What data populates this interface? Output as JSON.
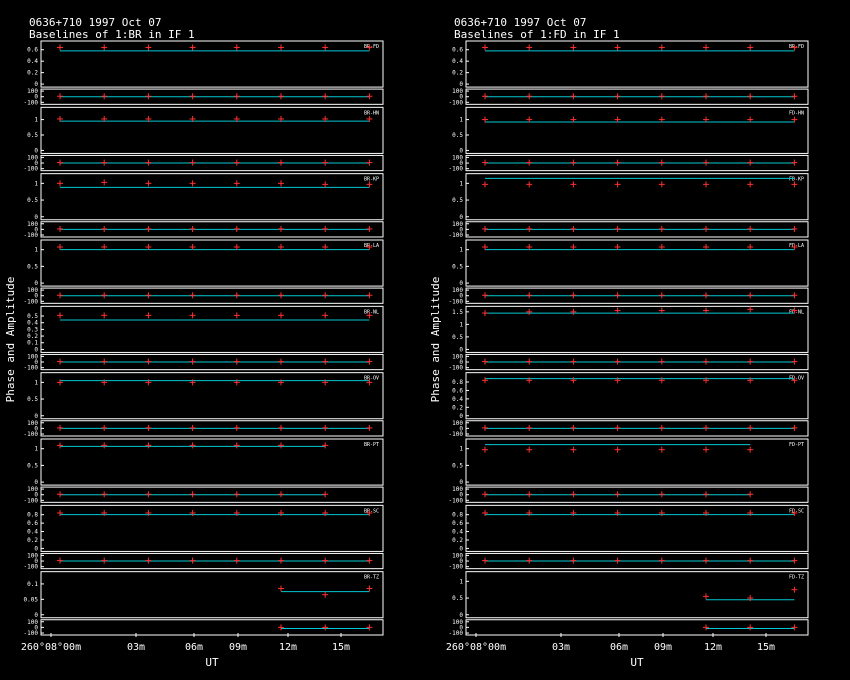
{
  "colors": {
    "background": "#000000",
    "frame": "#ffffff",
    "model": "#00c8d2",
    "data": "#ff3030"
  },
  "chart_data": [
    {
      "type": "scatter",
      "source": "0636+710",
      "date": "1997 Oct 07",
      "title": "Baselines of 1:BR in IF 1",
      "ylabel": "Phase and Amplitude",
      "xlabel": "UT",
      "x_ticks": [
        "260°08°00m",
        "03m",
        "06m",
        "09m",
        "12m",
        "15m"
      ],
      "baselines": [
        {
          "label": "BR-FD",
          "amp_ticks": [
            "0.6",
            "0.4",
            "0.2",
            "0"
          ],
          "amp_ylim": [
            0,
            0.7
          ],
          "model_amp": 0.58,
          "amp_points": [
            0.64,
            0.64,
            0.64,
            0.64,
            0.64,
            0.64,
            0.64,
            0.64
          ],
          "phase_ticks": [
            "100",
            "0",
            "-100"
          ],
          "model_phase": 0,
          "phase_points": [
            8,
            8,
            8,
            8,
            8,
            8,
            8,
            8
          ]
        },
        {
          "label": "BR-HN",
          "amp_ticks": [
            "1",
            "0.5",
            "0"
          ],
          "amp_ylim": [
            0,
            1.3
          ],
          "model_amp": 0.95,
          "amp_points": [
            1.02,
            1.02,
            1.02,
            1.02,
            1.02,
            1.02,
            1.02,
            1.02
          ],
          "phase_ticks": [
            "100",
            "0",
            "-100"
          ],
          "model_phase": 0,
          "phase_points": [
            8,
            8,
            8,
            8,
            8,
            8,
            8,
            8
          ]
        },
        {
          "label": "BR-KP",
          "amp_ticks": [
            "1",
            "0.5",
            "0"
          ],
          "amp_ylim": [
            0,
            1.2
          ],
          "model_amp": 0.88,
          "amp_points": [
            1.0,
            1.03,
            1.0,
            1.0,
            1.0,
            1.0,
            0.97,
            0.97
          ],
          "phase_ticks": [
            "100",
            "0",
            "-100"
          ],
          "model_phase": 0,
          "phase_points": [
            8,
            8,
            8,
            8,
            8,
            8,
            8,
            8
          ]
        },
        {
          "label": "BR-LA",
          "amp_ticks": [
            "1",
            "0.5",
            "0"
          ],
          "amp_ylim": [
            0,
            1.2
          ],
          "model_amp": 1.0,
          "amp_points": [
            1.08,
            1.08,
            1.08,
            1.08,
            1.08,
            1.08,
            1.08,
            1.08
          ],
          "phase_ticks": [
            "100",
            "0",
            "-100"
          ],
          "model_phase": 0,
          "phase_points": [
            8,
            8,
            8,
            8,
            8,
            8,
            8,
            8
          ]
        },
        {
          "label": "BR-NL",
          "amp_ticks": [
            "0.5",
            "0.4",
            "0.3",
            "0.2",
            "0.1",
            "0"
          ],
          "amp_ylim": [
            0,
            0.6
          ],
          "model_amp": 0.44,
          "amp_points": [
            0.51,
            0.51,
            0.51,
            0.51,
            0.51,
            0.51,
            0.51,
            0.51
          ],
          "phase_ticks": [
            "100",
            "0",
            "-100"
          ],
          "model_phase": 0,
          "phase_points": [
            8,
            8,
            8,
            8,
            8,
            8,
            8,
            8
          ]
        },
        {
          "label": "BR-OV",
          "amp_ticks": [
            "1",
            "0.5",
            "0"
          ],
          "amp_ylim": [
            0,
            1.2
          ],
          "model_amp": 1.05,
          "amp_points": [
            1.0,
            1.0,
            1.0,
            1.0,
            1.0,
            1.0,
            1.0,
            1.0
          ],
          "phase_ticks": [
            "100",
            "0",
            "-100"
          ],
          "model_phase": 0,
          "phase_points": [
            8,
            8,
            8,
            8,
            8,
            8,
            8,
            8
          ]
        },
        {
          "label": "BR-PT",
          "amp_ticks": [
            "1",
            "0.5",
            "0"
          ],
          "amp_ylim": [
            0,
            1.2
          ],
          "model_amp": 1.07,
          "amp_points": [
            1.1,
            1.1,
            1.1,
            1.1,
            1.1,
            1.1,
            1.1
          ],
          "phase_ticks": [
            "100",
            "0",
            "-100"
          ],
          "model_phase": 0,
          "phase_points": [
            8,
            8,
            8,
            8,
            8,
            8,
            8
          ]
        },
        {
          "label": "BR-SC",
          "amp_ticks": [
            "0.8",
            "0.6",
            "0.4",
            "0.2",
            "0"
          ],
          "amp_ylim": [
            0,
            0.95
          ],
          "model_amp": 0.8,
          "amp_points": [
            0.84,
            0.84,
            0.84,
            0.84,
            0.84,
            0.84,
            0.84,
            0.84
          ],
          "phase_ticks": [
            "100",
            "0",
            "-100"
          ],
          "model_phase": 0,
          "phase_points": [
            8,
            8,
            8,
            8,
            8,
            8,
            8,
            8
          ]
        },
        {
          "label": "BR-TZ",
          "amp_ticks": [
            "0.1",
            "0.05",
            "0"
          ],
          "amp_ylim": [
            0,
            0.13
          ],
          "model_amp": 0.075,
          "amp_points": [
            null,
            null,
            null,
            null,
            null,
            0.085,
            0.065,
            0.085
          ],
          "phase_ticks": [
            "100",
            "0",
            "-100"
          ],
          "model_phase": -20,
          "phase_points": [
            null,
            null,
            null,
            null,
            null,
            0,
            0,
            0
          ]
        }
      ]
    },
    {
      "type": "scatter",
      "source": "0636+710",
      "date": "1997 Oct 07",
      "title": "Baselines of 1:FD in IF 1",
      "ylabel": "Phase and Amplitude",
      "xlabel": "UT",
      "x_ticks": [
        "260°08°00m",
        "03m",
        "06m",
        "09m",
        "12m",
        "15m"
      ],
      "baselines": [
        {
          "label": "BR-FD",
          "amp_ticks": [
            "0.6",
            "0.4",
            "0.2",
            "0"
          ],
          "amp_ylim": [
            0,
            0.7
          ],
          "model_amp": 0.58,
          "amp_points": [
            0.64,
            0.64,
            0.64,
            0.64,
            0.64,
            0.64,
            0.64,
            0.64
          ],
          "phase_ticks": [
            "100",
            "0",
            "-100"
          ],
          "model_phase": 0,
          "phase_points": [
            8,
            8,
            8,
            8,
            8,
            8,
            8,
            8
          ]
        },
        {
          "label": "FD-HN",
          "amp_ticks": [
            "1",
            "0.5",
            "0"
          ],
          "amp_ylim": [
            0,
            1.3
          ],
          "model_amp": 0.92,
          "amp_points": [
            1.0,
            1.0,
            1.0,
            1.0,
            1.0,
            1.0,
            1.0,
            1.0
          ],
          "phase_ticks": [
            "100",
            "0",
            "-100"
          ],
          "model_phase": 0,
          "phase_points": [
            8,
            8,
            8,
            8,
            8,
            8,
            8,
            8
          ]
        },
        {
          "label": "FD-KP",
          "amp_ticks": [
            "1",
            "0.5",
            "0"
          ],
          "amp_ylim": [
            0,
            1.2
          ],
          "model_amp": 1.15,
          "amp_points": [
            0.97,
            0.97,
            0.97,
            0.97,
            0.97,
            0.97,
            0.97,
            0.97
          ],
          "phase_ticks": [
            "100",
            "0",
            "-100"
          ],
          "model_phase": 0,
          "phase_points": [
            8,
            8,
            8,
            8,
            8,
            8,
            8,
            8
          ]
        },
        {
          "label": "FD-LA",
          "amp_ticks": [
            "1",
            "0.5",
            "0"
          ],
          "amp_ylim": [
            0,
            1.2
          ],
          "model_amp": 1.0,
          "amp_points": [
            1.08,
            1.08,
            1.08,
            1.08,
            1.08,
            1.08,
            1.08,
            1.08
          ],
          "phase_ticks": [
            "100",
            "0",
            "-100"
          ],
          "model_phase": 0,
          "phase_points": [
            8,
            8,
            8,
            8,
            8,
            8,
            8,
            8
          ]
        },
        {
          "label": "FD-NL",
          "amp_ticks": [
            "1.5",
            "1",
            "0.5",
            "0"
          ],
          "amp_ylim": [
            0,
            1.6
          ],
          "model_amp": 1.45,
          "amp_points": [
            1.45,
            1.5,
            1.5,
            1.55,
            1.55,
            1.55,
            1.6,
            1.55
          ],
          "phase_ticks": [
            "100",
            "0",
            "-100"
          ],
          "model_phase": 0,
          "phase_points": [
            8,
            8,
            8,
            8,
            8,
            8,
            8,
            8
          ]
        },
        {
          "label": "FD-OV",
          "amp_ticks": [
            "0.8",
            "0.6",
            "0.4",
            "0.2",
            "0"
          ],
          "amp_ylim": [
            0,
            0.95
          ],
          "model_amp": 0.88,
          "amp_points": [
            0.84,
            0.84,
            0.84,
            0.84,
            0.84,
            0.84,
            0.84,
            0.84
          ],
          "phase_ticks": [
            "100",
            "0",
            "-100"
          ],
          "model_phase": 0,
          "phase_points": [
            8,
            8,
            8,
            8,
            8,
            8,
            8,
            8
          ]
        },
        {
          "label": "FD-PT",
          "amp_ticks": [
            "1",
            "0.5",
            "0"
          ],
          "amp_ylim": [
            0,
            1.2
          ],
          "model_amp": 1.12,
          "amp_points": [
            0.97,
            0.97,
            0.97,
            0.97,
            0.97,
            0.97,
            0.97
          ],
          "phase_ticks": [
            "100",
            "0",
            "-100"
          ],
          "model_phase": 0,
          "phase_points": [
            8,
            8,
            8,
            8,
            8,
            8,
            8
          ]
        },
        {
          "label": "FD-SC",
          "amp_ticks": [
            "0.8",
            "0.6",
            "0.4",
            "0.2",
            "0"
          ],
          "amp_ylim": [
            0,
            0.95
          ],
          "model_amp": 0.8,
          "amp_points": [
            0.84,
            0.84,
            0.84,
            0.84,
            0.84,
            0.84,
            0.84,
            0.84
          ],
          "phase_ticks": [
            "100",
            "0",
            "-100"
          ],
          "model_phase": 0,
          "phase_points": [
            8,
            8,
            8,
            8,
            8,
            8,
            8,
            8
          ]
        },
        {
          "label": "FD-TZ",
          "amp_ticks": [
            "1",
            "0.5",
            "0"
          ],
          "amp_ylim": [
            0,
            1.2
          ],
          "model_amp": 0.45,
          "amp_points": [
            null,
            null,
            null,
            null,
            null,
            0.55,
            0.5,
            0.75
          ],
          "phase_ticks": [
            "100",
            "0",
            "-100"
          ],
          "model_phase": -20,
          "phase_points": [
            null,
            null,
            null,
            null,
            null,
            0,
            0,
            0
          ]
        }
      ]
    }
  ]
}
